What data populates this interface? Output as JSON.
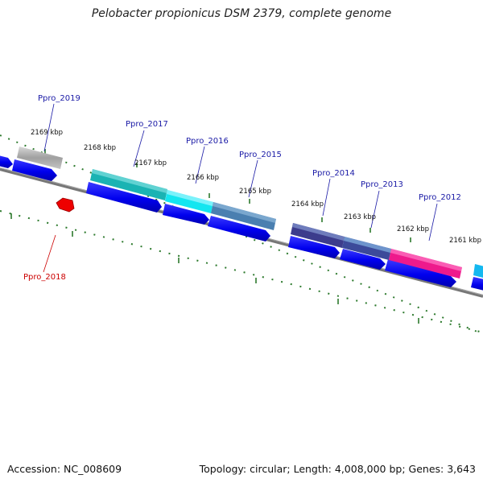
{
  "header": {
    "title": "Pelobacter propionicus DSM 2379, complete genome"
  },
  "footer": {
    "accession": "Accession: NC_008609",
    "summary": "Topology: circular; Length: 4,008,000 bp; Genes: 3,643"
  },
  "colors": {
    "backbone": "#777777",
    "forward_arrow": "#0000ee",
    "forward_label": "#1a1aa6",
    "reverse_label": "#cc0000",
    "reverse_gene": "#ee0000",
    "tick_green": "#2d7a2d"
  },
  "ruler": {
    "labels": [
      "2169 kbp",
      "2168 kbp",
      "2167 kbp",
      "2166 kbp",
      "2165 kbp",
      "2164 kbp",
      "2163 kbp",
      "2162 kbp",
      "2161 kbp"
    ]
  },
  "genes": [
    {
      "label": "Ppro_2019",
      "strand": "forward",
      "color": "#a8a8a8"
    },
    {
      "label": "Ppro_2018",
      "strand": "reverse",
      "color": "#ee0000"
    },
    {
      "label": "Ppro_2017",
      "strand": "forward",
      "color": "#1ab3b3"
    },
    {
      "label": "Ppro_2016",
      "strand": "forward",
      "color": "#14e6f0"
    },
    {
      "label": "Ppro_2015",
      "strand": "forward",
      "color": "#4a7fb0"
    },
    {
      "label": "Ppro_2014",
      "strand": "forward",
      "color": "#4a5aa0"
    },
    {
      "label": "Ppro_2013",
      "strand": "forward",
      "color": "#4a80c0"
    },
    {
      "label": "Ppro_2012",
      "strand": "forward",
      "color": "#ee1a8c"
    }
  ]
}
